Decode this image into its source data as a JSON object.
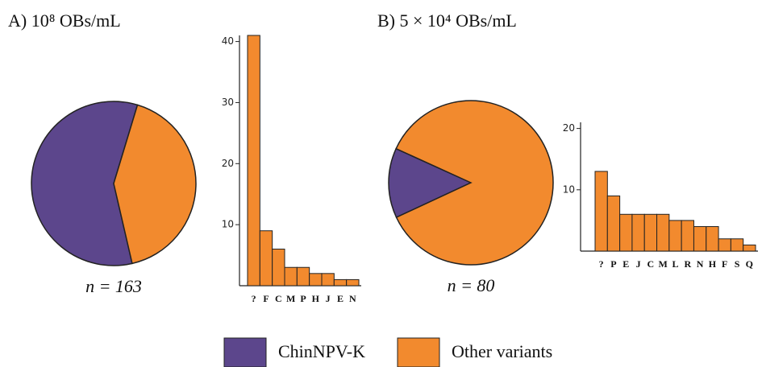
{
  "chart_data": [
    {
      "type": "pie",
      "title": "A) 10⁸ OBs/mL",
      "note": "n = 163",
      "categories": [
        "ChinNPV-K",
        "Other variants"
      ],
      "values": [
        95,
        68
      ],
      "colors": [
        "#5c468c",
        "#f28a2e"
      ]
    },
    {
      "type": "bar",
      "categories": [
        "?",
        "F",
        "C",
        "M",
        "P",
        "H",
        "J",
        "E",
        "N"
      ],
      "values": [
        41,
        9,
        6,
        3,
        3,
        2,
        2,
        1,
        1
      ],
      "color": "#f28a2e",
      "ylim": [
        0,
        41
      ],
      "yticks": [
        10,
        20,
        30,
        40
      ]
    },
    {
      "type": "pie",
      "title": "B) 5 × 10⁴ OBs/mL",
      "note": "n = 80",
      "categories": [
        "ChinNPV-K",
        "Other variants"
      ],
      "values": [
        11,
        69
      ],
      "colors": [
        "#5c468c",
        "#f28a2e"
      ]
    },
    {
      "type": "bar",
      "categories": [
        "?",
        "P",
        "E",
        "J",
        "C",
        "M",
        "L",
        "R",
        "N",
        "H",
        "F",
        "S",
        "Q"
      ],
      "values": [
        13,
        9,
        6,
        6,
        6,
        6,
        5,
        5,
        4,
        4,
        2,
        2,
        1
      ],
      "color": "#f28a2e",
      "ylim": [
        0,
        21
      ],
      "yticks": [
        10,
        20
      ]
    }
  ]
}
